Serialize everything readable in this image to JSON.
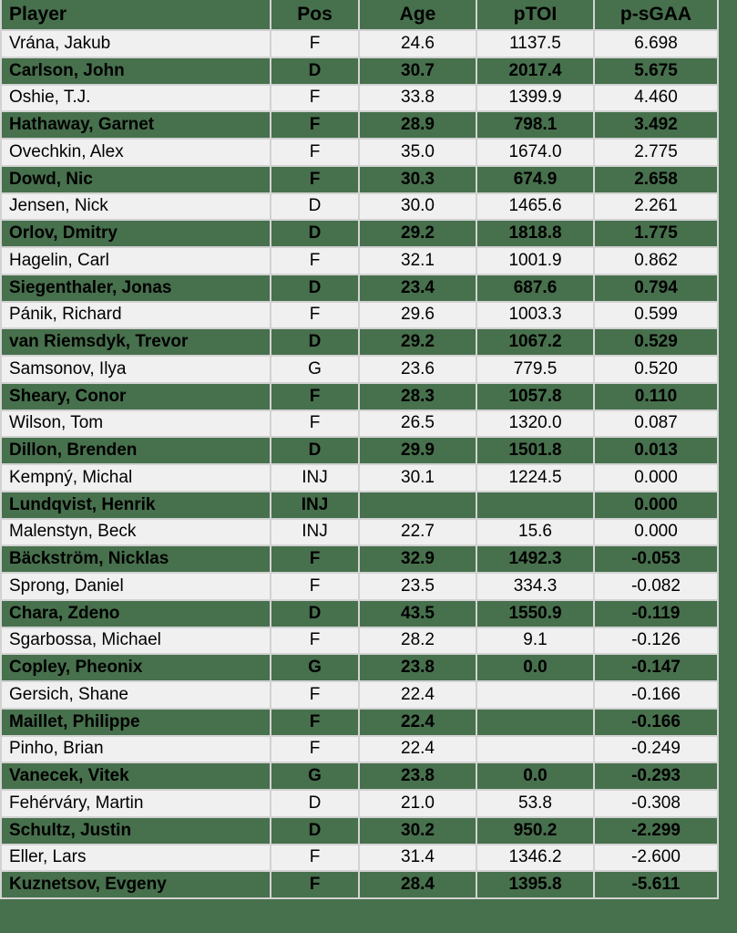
{
  "colors": {
    "canvas_bg": "#47704D",
    "header_bg": "#47704D",
    "green_row_bg": "#47704D",
    "light_row_bg": "#F0F0F0",
    "grid_line": "#D2D2D2",
    "text_color": "#000000"
  },
  "chart_data": {
    "type": "table",
    "columns": [
      "Player",
      "Pos",
      "Age",
      "pTOI",
      "p-sGAA"
    ],
    "column_keys": [
      "player",
      "pos",
      "age",
      "ptoi",
      "p-sgaa"
    ],
    "rows": [
      [
        "Vrána, Jakub",
        "F",
        "24.6",
        "1137.5",
        "6.698"
      ],
      [
        "Carlson, John",
        "D",
        "30.7",
        "2017.4",
        "5.675"
      ],
      [
        "Oshie, T.J.",
        "F",
        "33.8",
        "1399.9",
        "4.460"
      ],
      [
        "Hathaway, Garnet",
        "F",
        "28.9",
        "798.1",
        "3.492"
      ],
      [
        "Ovechkin, Alex",
        "F",
        "35.0",
        "1674.0",
        "2.775"
      ],
      [
        "Dowd, Nic",
        "F",
        "30.3",
        "674.9",
        "2.658"
      ],
      [
        "Jensen, Nick",
        "D",
        "30.0",
        "1465.6",
        "2.261"
      ],
      [
        "Orlov, Dmitry",
        "D",
        "29.2",
        "1818.8",
        "1.775"
      ],
      [
        "Hagelin, Carl",
        "F",
        "32.1",
        "1001.9",
        "0.862"
      ],
      [
        "Siegenthaler, Jonas",
        "D",
        "23.4",
        "687.6",
        "0.794"
      ],
      [
        "Pánik, Richard",
        "F",
        "29.6",
        "1003.3",
        "0.599"
      ],
      [
        "van Riemsdyk, Trevor",
        "D",
        "29.2",
        "1067.2",
        "0.529"
      ],
      [
        "Samsonov, Ilya",
        "G",
        "23.6",
        "779.5",
        "0.520"
      ],
      [
        "Sheary, Conor",
        "F",
        "28.3",
        "1057.8",
        "0.110"
      ],
      [
        "Wilson, Tom",
        "F",
        "26.5",
        "1320.0",
        "0.087"
      ],
      [
        "Dillon, Brenden",
        "D",
        "29.9",
        "1501.8",
        "0.013"
      ],
      [
        "Kempný, Michal",
        "INJ",
        "30.1",
        "1224.5",
        "0.000"
      ],
      [
        "Lundqvist, Henrik",
        "INJ",
        "",
        "",
        "0.000"
      ],
      [
        "Malenstyn, Beck",
        "INJ",
        "22.7",
        "15.6",
        "0.000"
      ],
      [
        "Bäckström, Nicklas",
        "F",
        "32.9",
        "1492.3",
        "-0.053"
      ],
      [
        "Sprong, Daniel",
        "F",
        "23.5",
        "334.3",
        "-0.082"
      ],
      [
        "Chara, Zdeno",
        "D",
        "43.5",
        "1550.9",
        "-0.119"
      ],
      [
        "Sgarbossa, Michael",
        "F",
        "28.2",
        "9.1",
        "-0.126"
      ],
      [
        "Copley, Pheonix",
        "G",
        "23.8",
        "0.0",
        "-0.147"
      ],
      [
        "Gersich, Shane",
        "F",
        "22.4",
        "",
        "-0.166"
      ],
      [
        "Maillet, Philippe",
        "F",
        "22.4",
        "",
        "-0.166"
      ],
      [
        "Pinho, Brian",
        "F",
        "22.4",
        "",
        "-0.249"
      ],
      [
        "Vanecek, Vitek",
        "G",
        "23.8",
        "0.0",
        "-0.293"
      ],
      [
        "Fehérváry, Martin",
        "D",
        "21.0",
        "53.8",
        "-0.308"
      ],
      [
        "Schultz, Justin",
        "D",
        "30.2",
        "950.2",
        "-2.299"
      ],
      [
        "Eller, Lars",
        "F",
        "31.4",
        "1346.2",
        "-2.600"
      ],
      [
        "Kuznetsov, Evgeny",
        "F",
        "28.4",
        "1395.8",
        "-5.611"
      ]
    ]
  }
}
